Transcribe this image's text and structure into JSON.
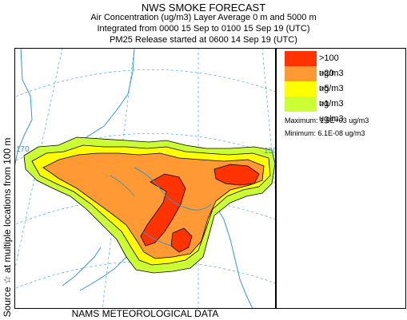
{
  "header": {
    "title": "NWS SMOKE FORECAST",
    "line1": "Air Concentration (ug/m3) Layer Average    0 m and  5000 m",
    "line2": "Integrated from 0000 15 Sep to 0100 15 Sep 19 (UTC)",
    "line3": "PM25 Release started at 0600 14 Sep 19 (UTC)"
  },
  "footer": "NAMS METEOROLOGICAL DATA",
  "side_label": "Source ☆    at multiple locations      from   100 m",
  "map": {
    "lon_labels": [
      "170",
      "150"
    ],
    "colors": {
      "ocean": "#ffffff",
      "coast": "#3399cc",
      "grid": "#3399cc",
      "contour": "#000000"
    }
  },
  "legend": {
    "items": [
      {
        "label": ">100 ug/m3",
        "color": "#ff3300"
      },
      {
        "label": ">20 ug/m3",
        "color": "#ff9933"
      },
      {
        "label": ">5 ug/m3",
        "color": "#ffff00"
      },
      {
        "label": ">1 ug/m3",
        "color": "#ccff33"
      }
    ],
    "maximum": "Maximum: 1.5E+03 ug/m3",
    "minimum": "Minimum: 6.1E-08 ug/m3"
  },
  "chart_data": {
    "type": "heatmap",
    "title": "NWS SMOKE FORECAST",
    "quantity": "Air Concentration (ug/m3)",
    "thresholds": [
      1,
      5,
      20,
      100
    ],
    "categories": [
      ">100 ug/m3",
      ">20 ug/m3",
      ">5 ug/m3",
      ">1 ug/m3"
    ],
    "maximum": 1500,
    "minimum": 6.1e-08
  }
}
